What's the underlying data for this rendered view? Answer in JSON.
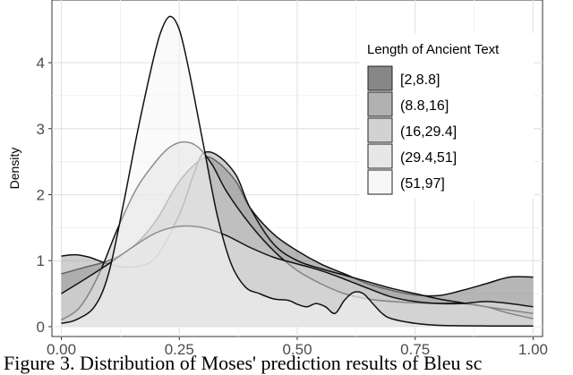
{
  "chart_data": {
    "type": "area",
    "title": "",
    "xlabel": "",
    "ylabel": "Density",
    "xlim": [
      -0.02,
      1.02
    ],
    "ylim": [
      -0.15,
      4.95
    ],
    "x_ticks": [
      0.0,
      0.25,
      0.5,
      0.75,
      1.0
    ],
    "x_tick_labels": [
      "0.00",
      "0.25",
      "0.50",
      "0.75",
      "1.00"
    ],
    "y_ticks": [
      0,
      1,
      2,
      3,
      4
    ],
    "y_tick_labels": [
      "0",
      "1",
      "2",
      "3",
      "4"
    ],
    "grid": true,
    "legend": {
      "title": "Length of Ancient Text",
      "position": "top-right"
    },
    "series": [
      {
        "name": "[2,8.8]",
        "fill": "#7a7a7a",
        "points": [
          [
            0.0,
            0.8
          ],
          [
            0.05,
            0.9
          ],
          [
            0.1,
            1.0
          ],
          [
            0.15,
            1.2
          ],
          [
            0.2,
            1.6
          ],
          [
            0.25,
            2.2
          ],
          [
            0.3,
            2.55
          ],
          [
            0.33,
            2.5
          ],
          [
            0.37,
            2.2
          ],
          [
            0.4,
            1.8
          ],
          [
            0.45,
            1.4
          ],
          [
            0.5,
            1.15
          ],
          [
            0.55,
            0.95
          ],
          [
            0.6,
            0.8
          ],
          [
            0.65,
            0.65
          ],
          [
            0.7,
            0.55
          ],
          [
            0.75,
            0.48
          ],
          [
            0.8,
            0.47
          ],
          [
            0.85,
            0.55
          ],
          [
            0.9,
            0.65
          ],
          [
            0.95,
            0.75
          ],
          [
            1.0,
            0.75
          ]
        ]
      },
      {
        "name": "(8.8,16]",
        "fill": "#a8a8a8",
        "points": [
          [
            0.0,
            1.07
          ],
          [
            0.03,
            1.09
          ],
          [
            0.06,
            1.05
          ],
          [
            0.1,
            0.95
          ],
          [
            0.15,
            0.9
          ],
          [
            0.2,
            1.05
          ],
          [
            0.25,
            1.7
          ],
          [
            0.28,
            2.3
          ],
          [
            0.3,
            2.62
          ],
          [
            0.33,
            2.6
          ],
          [
            0.37,
            2.3
          ],
          [
            0.4,
            1.8
          ],
          [
            0.45,
            1.25
          ],
          [
            0.5,
            1.0
          ],
          [
            0.55,
            0.88
          ],
          [
            0.6,
            0.78
          ],
          [
            0.65,
            0.68
          ],
          [
            0.7,
            0.58
          ],
          [
            0.75,
            0.5
          ],
          [
            0.8,
            0.42
          ],
          [
            0.85,
            0.36
          ],
          [
            0.9,
            0.3
          ],
          [
            0.95,
            0.25
          ],
          [
            1.0,
            0.2
          ]
        ]
      },
      {
        "name": "(16,29.4]",
        "fill": "#cdcdcd",
        "points": [
          [
            0.0,
            0.1
          ],
          [
            0.04,
            0.3
          ],
          [
            0.08,
            0.8
          ],
          [
            0.12,
            1.5
          ],
          [
            0.16,
            2.1
          ],
          [
            0.2,
            2.5
          ],
          [
            0.23,
            2.72
          ],
          [
            0.26,
            2.8
          ],
          [
            0.29,
            2.72
          ],
          [
            0.32,
            2.45
          ],
          [
            0.35,
            2.05
          ],
          [
            0.4,
            1.55
          ],
          [
            0.45,
            1.15
          ],
          [
            0.5,
            0.85
          ],
          [
            0.55,
            0.65
          ],
          [
            0.6,
            0.5
          ],
          [
            0.65,
            0.42
          ],
          [
            0.7,
            0.38
          ],
          [
            0.75,
            0.36
          ],
          [
            0.8,
            0.35
          ],
          [
            0.85,
            0.35
          ],
          [
            0.9,
            0.3
          ],
          [
            0.95,
            0.2
          ],
          [
            1.0,
            0.12
          ]
        ]
      },
      {
        "name": "(29.4,51]",
        "fill": "#e4e4e4",
        "points": [
          [
            0.0,
            0.5
          ],
          [
            0.05,
            0.72
          ],
          [
            0.1,
            0.95
          ],
          [
            0.15,
            1.2
          ],
          [
            0.2,
            1.42
          ],
          [
            0.25,
            1.52
          ],
          [
            0.3,
            1.5
          ],
          [
            0.35,
            1.38
          ],
          [
            0.4,
            1.2
          ],
          [
            0.45,
            1.05
          ],
          [
            0.5,
            0.95
          ],
          [
            0.55,
            0.85
          ],
          [
            0.6,
            0.72
          ],
          [
            0.65,
            0.58
          ],
          [
            0.7,
            0.45
          ],
          [
            0.75,
            0.38
          ],
          [
            0.8,
            0.35
          ],
          [
            0.85,
            0.35
          ],
          [
            0.9,
            0.38
          ],
          [
            0.95,
            0.35
          ],
          [
            1.0,
            0.3
          ]
        ]
      },
      {
        "name": "(51,97]",
        "fill": "#f5f5f5",
        "points": [
          [
            0.0,
            0.05
          ],
          [
            0.03,
            0.1
          ],
          [
            0.07,
            0.3
          ],
          [
            0.1,
            0.8
          ],
          [
            0.13,
            1.8
          ],
          [
            0.16,
            2.9
          ],
          [
            0.19,
            3.9
          ],
          [
            0.21,
            4.45
          ],
          [
            0.23,
            4.7
          ],
          [
            0.25,
            4.5
          ],
          [
            0.27,
            3.9
          ],
          [
            0.3,
            2.8
          ],
          [
            0.33,
            1.7
          ],
          [
            0.36,
            0.95
          ],
          [
            0.39,
            0.6
          ],
          [
            0.42,
            0.5
          ],
          [
            0.45,
            0.42
          ],
          [
            0.48,
            0.4
          ],
          [
            0.5,
            0.34
          ],
          [
            0.52,
            0.3
          ],
          [
            0.54,
            0.35
          ],
          [
            0.56,
            0.3
          ],
          [
            0.58,
            0.2
          ],
          [
            0.6,
            0.4
          ],
          [
            0.62,
            0.52
          ],
          [
            0.64,
            0.5
          ],
          [
            0.66,
            0.35
          ],
          [
            0.68,
            0.2
          ],
          [
            0.7,
            0.12
          ],
          [
            0.75,
            0.05
          ],
          [
            0.8,
            0.02
          ],
          [
            0.9,
            0.01
          ],
          [
            1.0,
            0.01
          ]
        ]
      }
    ]
  },
  "caption": "Figure 3. Distribution of Moses' prediction results of Bleu sc"
}
